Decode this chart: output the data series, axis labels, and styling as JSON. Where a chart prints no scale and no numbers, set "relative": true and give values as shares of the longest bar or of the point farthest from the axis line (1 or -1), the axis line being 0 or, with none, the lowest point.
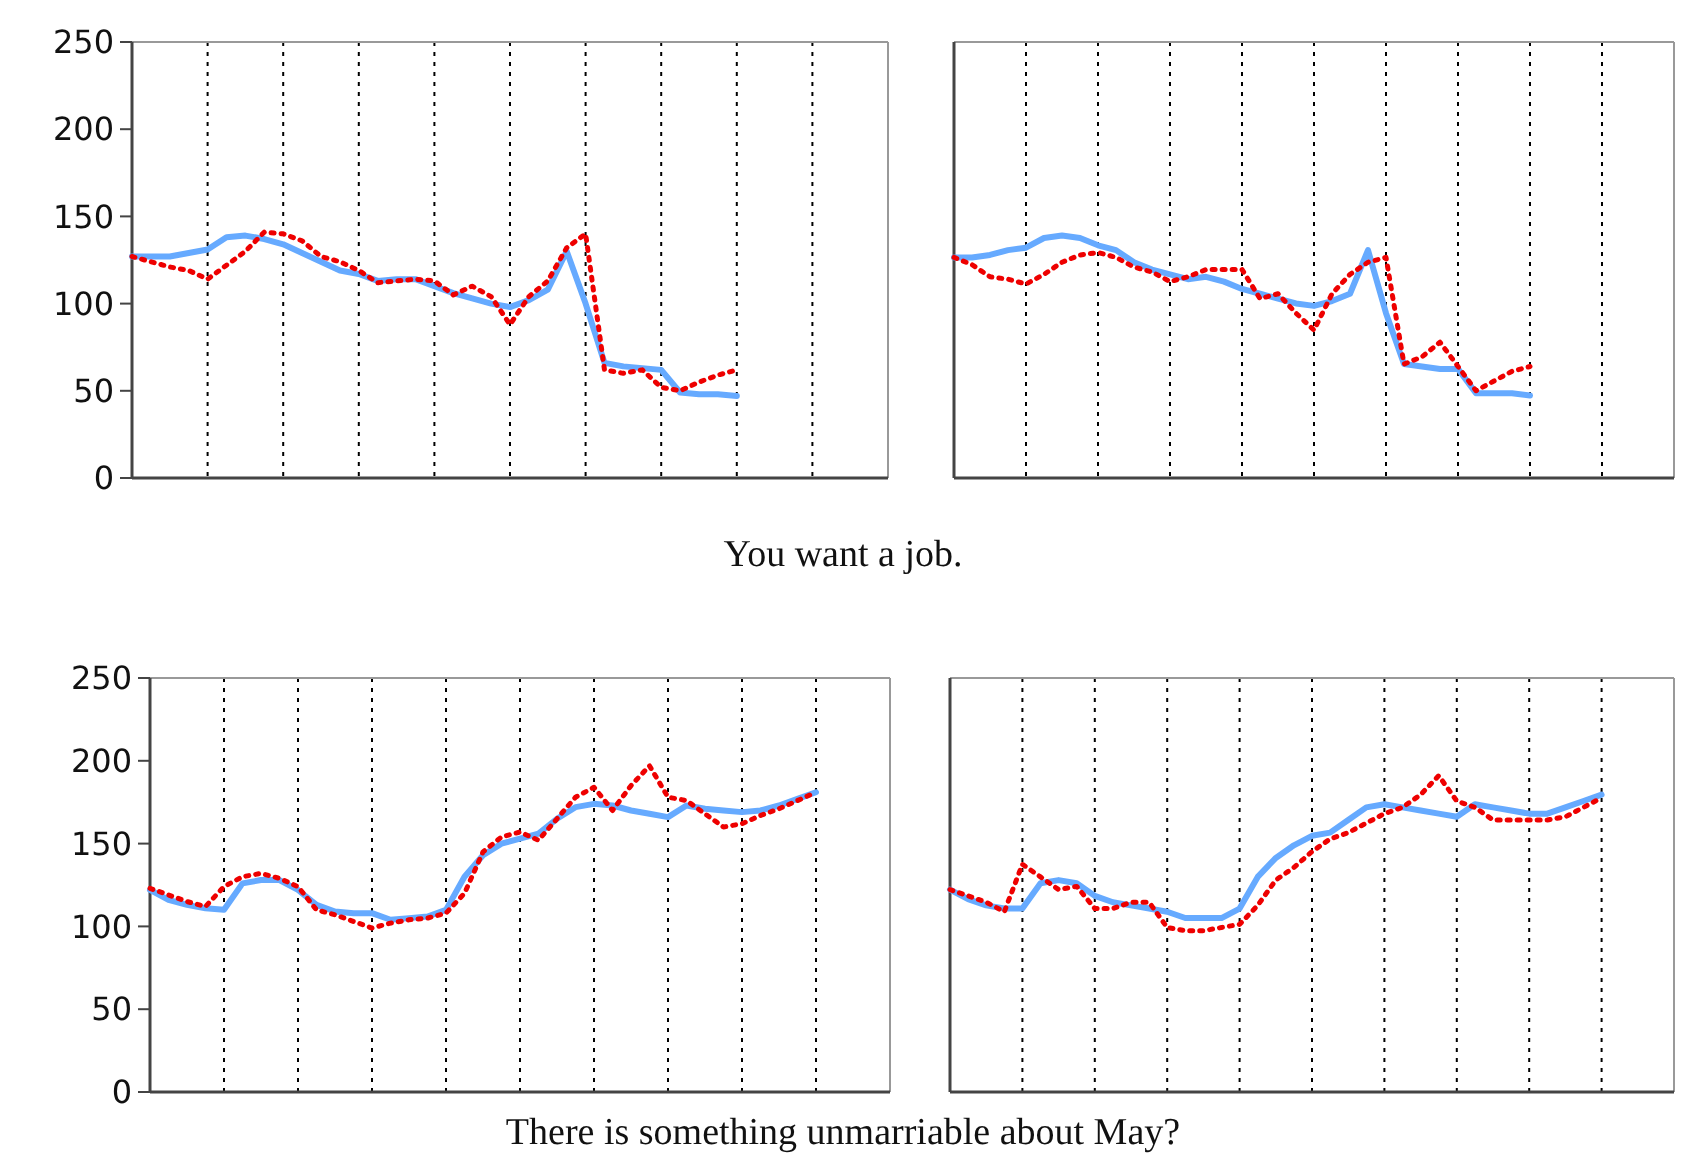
{
  "chart_data": [
    {
      "type": "line",
      "categories": [
        null,
        null,
        null,
        null,
        null,
        null,
        null,
        null,
        null,
        null,
        null,
        null,
        null,
        null,
        null,
        null,
        null,
        null,
        null,
        null,
        null,
        null,
        null,
        null,
        null,
        null,
        null,
        null,
        null,
        null,
        null,
        null,
        null,
        null,
        null,
        null,
        null,
        null,
        null,
        null,
        null
      ],
      "ylim": [
        0,
        250
      ],
      "yticks": [
        0,
        50,
        100,
        150,
        200,
        250
      ],
      "tick_labels": "y",
      "grid": "x",
      "marker": "none",
      "annotations": [
        "You want a job."
      ],
      "series": [
        {
          "color": "#66aaff",
          "line_style": "solid",
          "values": [
            127,
            127,
            127,
            129,
            131,
            138,
            139,
            137,
            134,
            129,
            124,
            119,
            117,
            113,
            114,
            114,
            110,
            106,
            103,
            100,
            98,
            102,
            108,
            130,
            100,
            66,
            64,
            63,
            62,
            49,
            48,
            48,
            47,
            null,
            null,
            null,
            null,
            null,
            null,
            null,
            null
          ]
        },
        {
          "color": "#ee0000",
          "line_style": "dotted",
          "values": [
            127,
            124,
            121,
            119,
            114,
            122,
            130,
            141,
            140,
            136,
            127,
            124,
            119,
            112,
            113,
            114,
            113,
            105,
            110,
            104,
            88,
            104,
            113,
            132,
            140,
            62,
            60,
            62,
            52,
            50,
            55,
            59,
            62,
            null,
            null,
            null,
            null,
            null,
            null,
            null,
            null
          ]
        }
      ]
    },
    {
      "type": "line",
      "relative": true,
      "categories": [
        null,
        null,
        null,
        null,
        null,
        null,
        null,
        null,
        null,
        null,
        null,
        null,
        null,
        null,
        null,
        null,
        null,
        null,
        null,
        null,
        null,
        null,
        null,
        null,
        null,
        null,
        null,
        null,
        null,
        null,
        null,
        null,
        null,
        null,
        null,
        null,
        null,
        null,
        null,
        null,
        null
      ],
      "grid": "x",
      "marker": "none",
      "series": [
        {
          "color": "#66aaff",
          "line_style": "solid",
          "values": [
            0.91,
            0.91,
            0.92,
            0.94,
            0.95,
            0.99,
            1,
            0.99,
            0.96,
            0.94,
            0.89,
            0.86,
            0.84,
            0.82,
            0.83,
            0.81,
            0.78,
            0.76,
            0.74,
            0.72,
            0.71,
            0.73,
            0.76,
            0.94,
            0.68,
            0.47,
            0.46,
            0.45,
            0.45,
            0.35,
            0.35,
            0.35,
            0.34,
            null,
            null,
            null,
            null,
            null,
            null,
            null,
            null
          ]
        },
        {
          "color": "#ee0000",
          "line_style": "dotted",
          "values": [
            0.91,
            0.88,
            0.83,
            0.82,
            0.8,
            0.84,
            0.89,
            0.92,
            0.93,
            0.91,
            0.87,
            0.85,
            0.81,
            0.83,
            0.86,
            0.86,
            0.86,
            0.74,
            0.76,
            0.68,
            0.61,
            0.76,
            0.84,
            0.89,
            0.91,
            0.47,
            0.5,
            0.56,
            0.46,
            0.36,
            0.4,
            0.44,
            0.46,
            null,
            null,
            null,
            null,
            null,
            null,
            null,
            null
          ]
        }
      ]
    },
    {
      "type": "line",
      "categories": [
        null,
        null,
        null,
        null,
        null,
        null,
        null,
        null,
        null,
        null,
        null,
        null,
        null,
        null,
        null,
        null,
        null,
        null,
        null,
        null,
        null,
        null,
        null,
        null,
        null,
        null,
        null,
        null,
        null,
        null,
        null,
        null,
        null,
        null,
        null,
        null,
        null,
        null,
        null,
        null,
        null
      ],
      "ylim": [
        0,
        250
      ],
      "yticks": [
        0,
        50,
        100,
        150,
        200,
        250
      ],
      "tick_labels": "y",
      "grid": "x",
      "marker": "none",
      "annotations": [
        "There is something unmarriable about May?"
      ],
      "series": [
        {
          "color": "#66aaff",
          "line_style": "solid",
          "values": [
            122,
            116,
            113,
            111,
            110,
            126,
            128,
            128,
            122,
            113,
            109,
            108,
            108,
            104,
            105,
            106,
            110,
            130,
            143,
            150,
            153,
            156,
            165,
            172,
            174,
            173,
            170,
            168,
            166,
            173,
            171,
            170,
            169,
            170,
            173,
            177,
            181,
            null,
            null,
            null,
            null
          ]
        },
        {
          "color": "#ee0000",
          "line_style": "dotted",
          "values": [
            123,
            119,
            115,
            112,
            124,
            130,
            132,
            129,
            124,
            110,
            107,
            103,
            99,
            102,
            104,
            105,
            108,
            120,
            145,
            154,
            157,
            152,
            165,
            178,
            184,
            170,
            185,
            197,
            178,
            176,
            168,
            160,
            162,
            167,
            171,
            176,
            181,
            null,
            null,
            null,
            null
          ]
        }
      ]
    },
    {
      "type": "line",
      "relative": true,
      "categories": [
        null,
        null,
        null,
        null,
        null,
        null,
        null,
        null,
        null,
        null,
        null,
        null,
        null,
        null,
        null,
        null,
        null,
        null,
        null,
        null,
        null,
        null,
        null,
        null,
        null,
        null,
        null,
        null,
        null,
        null,
        null,
        null,
        null,
        null,
        null,
        null,
        null,
        null,
        null,
        null,
        null
      ],
      "grid": "x",
      "marker": "none",
      "series": [
        {
          "color": "#66aaff",
          "line_style": "solid",
          "values": [
            0.64,
            0.61,
            0.59,
            0.58,
            0.58,
            0.66,
            0.67,
            0.66,
            0.62,
            0.6,
            0.59,
            0.58,
            0.57,
            0.55,
            0.55,
            0.55,
            0.58,
            0.68,
            0.74,
            0.78,
            0.81,
            0.82,
            0.86,
            0.9,
            0.91,
            0.9,
            0.89,
            0.88,
            0.87,
            0.91,
            0.9,
            0.89,
            0.88,
            0.88,
            0.9,
            0.92,
            0.94,
            null,
            null,
            null,
            null
          ]
        },
        {
          "color": "#ee0000",
          "line_style": "dotted",
          "values": [
            0.64,
            0.62,
            0.6,
            0.57,
            0.72,
            0.68,
            0.64,
            0.65,
            0.58,
            0.58,
            0.6,
            0.6,
            0.52,
            0.51,
            0.51,
            0.52,
            0.53,
            0.59,
            0.67,
            0.71,
            0.76,
            0.8,
            0.82,
            0.85,
            0.88,
            0.9,
            0.94,
            1,
            0.92,
            0.9,
            0.86,
            0.86,
            0.86,
            0.86,
            0.87,
            0.9,
            0.93,
            null,
            null,
            null,
            null
          ]
        }
      ]
    }
  ]
}
